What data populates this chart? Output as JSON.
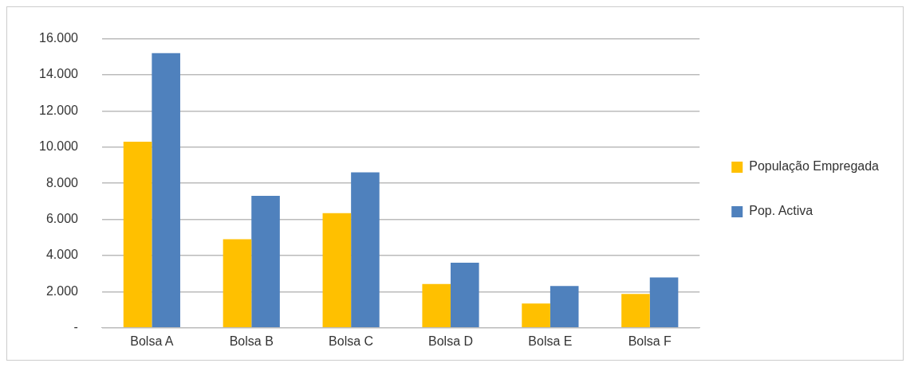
{
  "chart_data": {
    "type": "bar",
    "categories": [
      "Bolsa A",
      "Bolsa B",
      "Bolsa C",
      "Bolsa D",
      "Bolsa E",
      "Bolsa F"
    ],
    "series": [
      {
        "name": "População Empregada",
        "color": "#ffc000",
        "values": [
          10300,
          4900,
          6350,
          2430,
          1350,
          1870
        ]
      },
      {
        "name": "Pop. Activa",
        "color": "#4f81bd",
        "values": [
          15200,
          7300,
          8600,
          3600,
          2310,
          2790
        ]
      }
    ],
    "ylim": [
      0,
      16000
    ],
    "yticks": [
      {
        "value": 0,
        "label": "-"
      },
      {
        "value": 2000,
        "label": "2.000"
      },
      {
        "value": 4000,
        "label": "4.000"
      },
      {
        "value": 6000,
        "label": "6.000"
      },
      {
        "value": 8000,
        "label": "8.000"
      },
      {
        "value": 10000,
        "label": "10.000"
      },
      {
        "value": 12000,
        "label": "12.000"
      },
      {
        "value": 14000,
        "label": "14.000"
      },
      {
        "value": 16000,
        "label": "16.000"
      }
    ],
    "grid": "y",
    "legend": "right"
  }
}
